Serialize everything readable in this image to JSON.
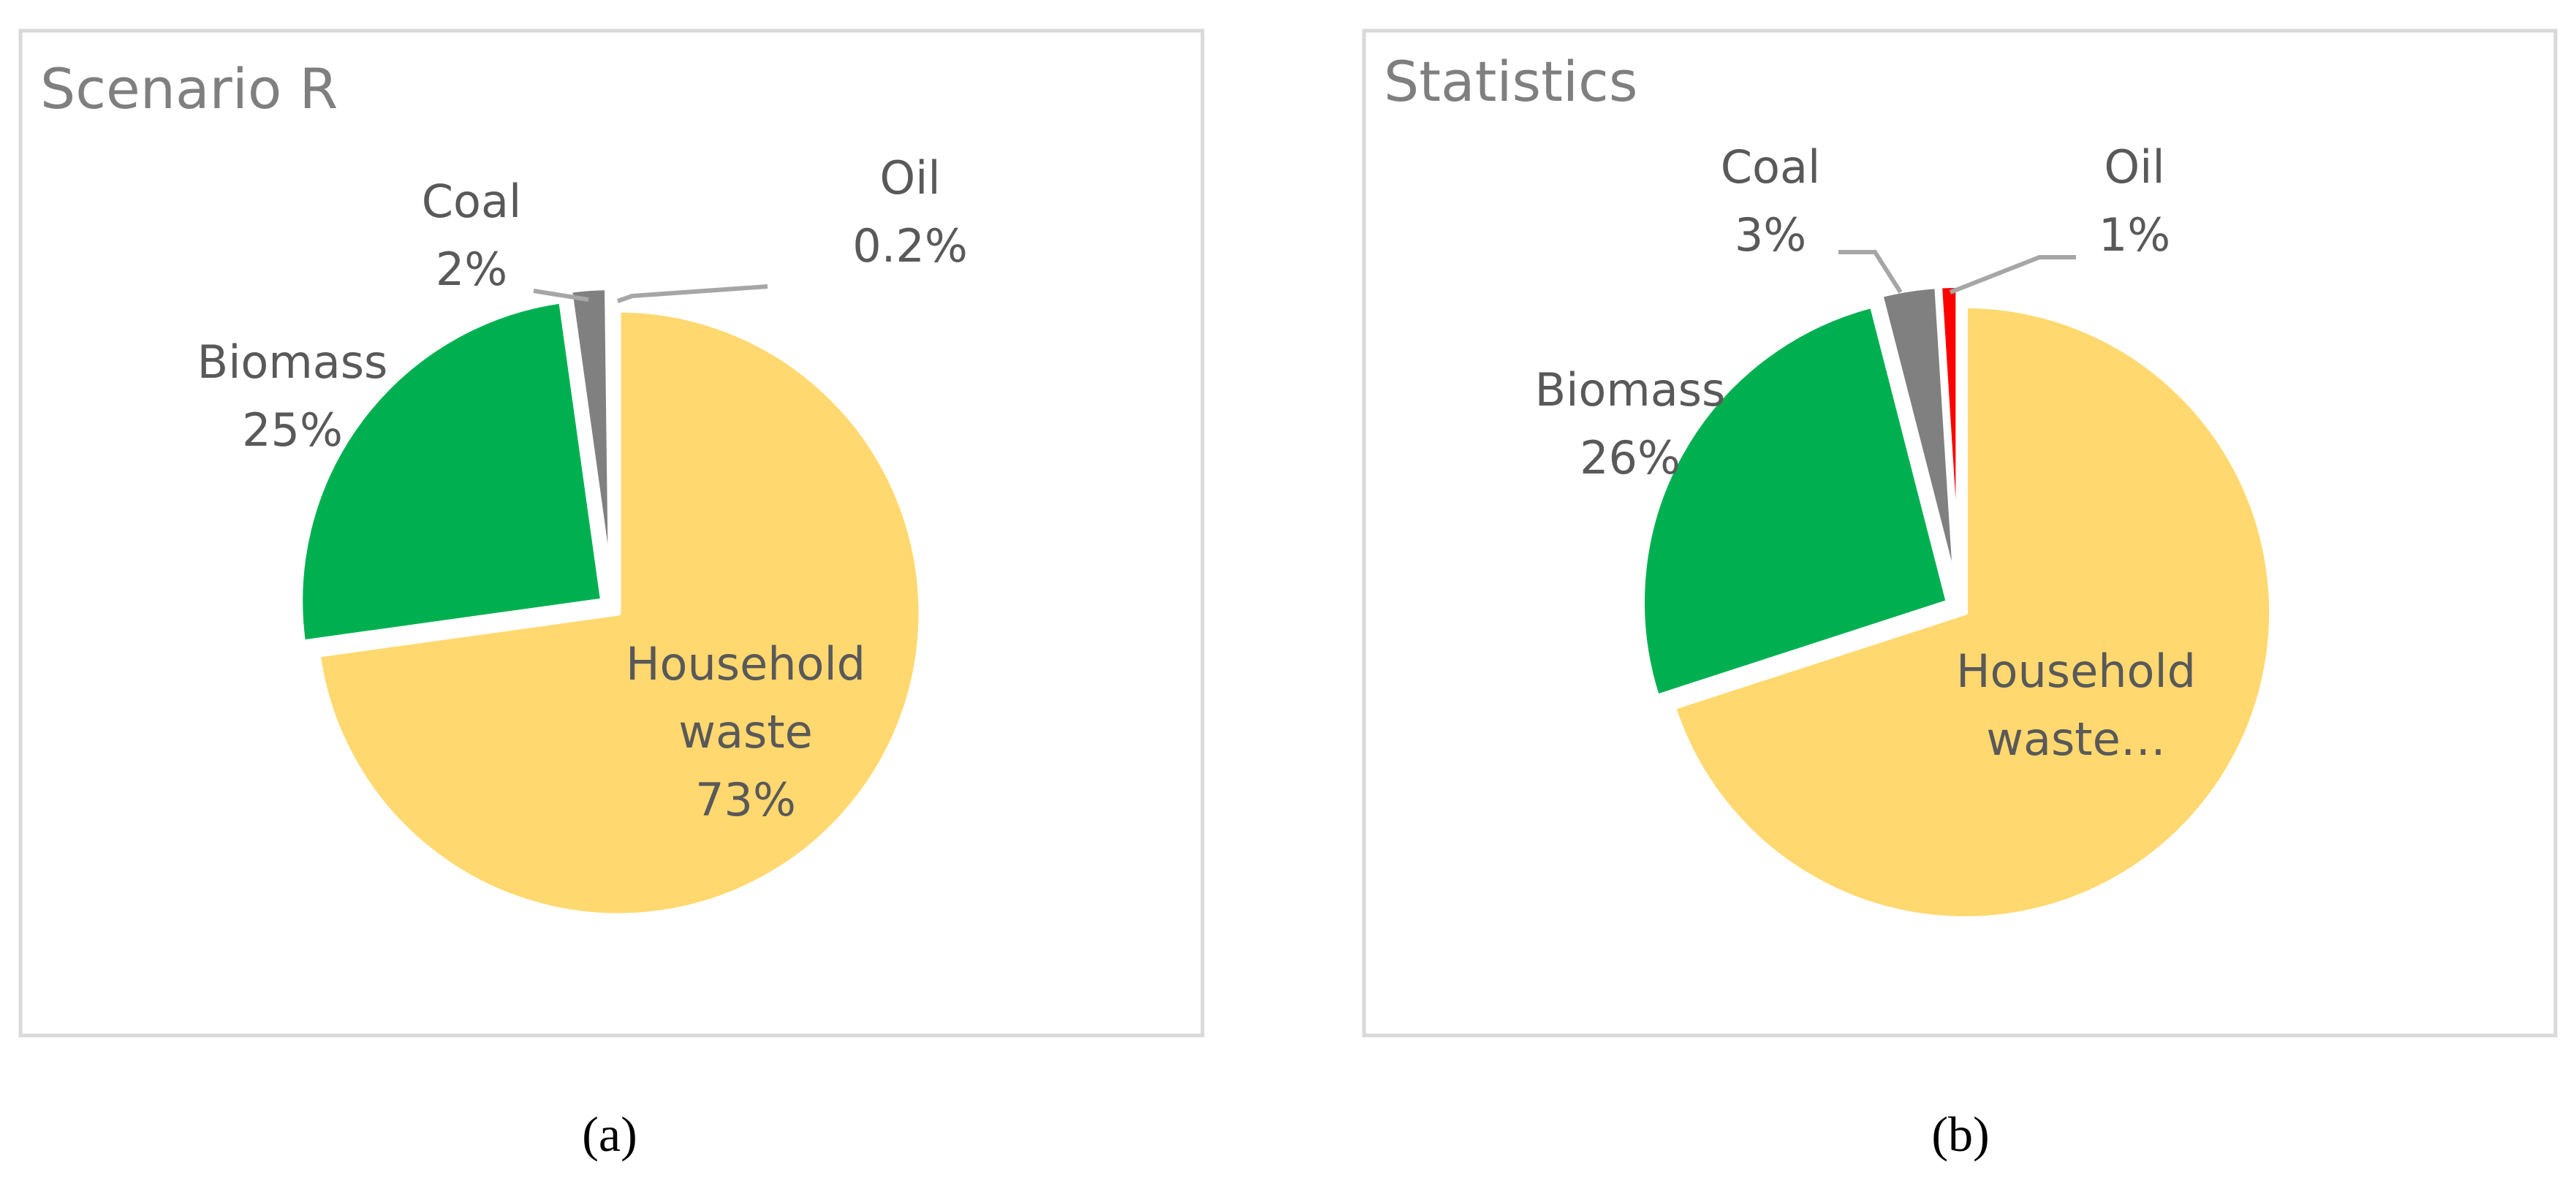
{
  "chart_data": [
    {
      "type": "pie",
      "title": "Scenario R",
      "caption": "(a)",
      "slices": [
        {
          "name": "Household waste",
          "value": 72.8,
          "label_lines": [
            "Household",
            "waste",
            "73%"
          ],
          "color": "#FFD86F"
        },
        {
          "name": "Biomass",
          "value": 25.0,
          "label_lines": [
            "Biomass",
            "25%"
          ],
          "color": "#00B050"
        },
        {
          "name": "Coal",
          "value": 2.0,
          "label_lines": [
            "Coal",
            "2%"
          ],
          "color": "#808080"
        },
        {
          "name": "Oil",
          "value": 0.2,
          "label_lines": [
            "Oil",
            "0.2%"
          ],
          "color": "#A6A6A6"
        }
      ]
    },
    {
      "type": "pie",
      "title": "Statistics",
      "caption": "(b)",
      "slices": [
        {
          "name": "Household waste",
          "value": 70.0,
          "label_lines": [
            "Household",
            "waste…"
          ],
          "color": "#FFD86F"
        },
        {
          "name": "Biomass",
          "value": 26.0,
          "label_lines": [
            "Biomass",
            "26%"
          ],
          "color": "#00B050"
        },
        {
          "name": "Coal",
          "value": 3.0,
          "label_lines": [
            "Coal",
            "3%"
          ],
          "color": "#808080"
        },
        {
          "name": "Oil",
          "value": 1.0,
          "label_lines": [
            "Oil",
            "1%"
          ],
          "color": "#FF0000"
        }
      ]
    }
  ],
  "colors": {
    "frame_border": "#D9D9D9",
    "title_text": "#7F7F7F",
    "label_text": "#595959",
    "leader_line": "#A6A6A6",
    "slice_separator": "#FFFFFF"
  }
}
